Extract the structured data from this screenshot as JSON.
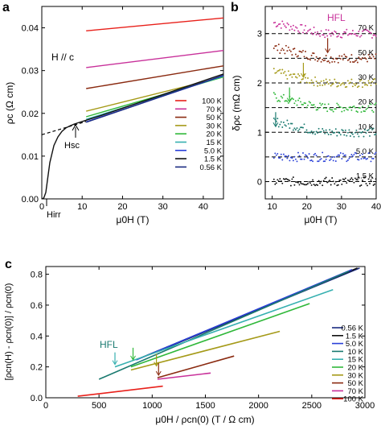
{
  "chart_data": [
    {
      "panel": "a",
      "type": "line",
      "xlabel": "μ0H (T)",
      "ylabel": "ρc (Ω cm)",
      "xlim": [
        0,
        45
      ],
      "ylim": [
        0,
        0.045
      ],
      "xticks": [
        0,
        10,
        20,
        30,
        40
      ],
      "yticks": [
        0.0,
        0.01,
        0.02,
        0.03,
        0.04
      ],
      "ytick_labels": [
        "0.00",
        "0.01",
        "0.02",
        "0.03",
        "0.04"
      ],
      "annotations": [
        "H // c",
        "Hsc",
        "Hirr"
      ],
      "legend": "right",
      "series": [
        {
          "name": "100 K",
          "color": "#e8201a",
          "x": [
            11,
            45
          ],
          "y": [
            0.0393,
            0.0423
          ]
        },
        {
          "name": "70 K",
          "color": "#c8309a",
          "x": [
            11,
            45
          ],
          "y": [
            0.0307,
            0.0347
          ]
        },
        {
          "name": "50 K",
          "color": "#8a2a10",
          "x": [
            11,
            45
          ],
          "y": [
            0.0258,
            0.0311
          ]
        },
        {
          "name": "30 K",
          "color": "#a59a18",
          "x": [
            11,
            45
          ],
          "y": [
            0.0205,
            0.0285
          ]
        },
        {
          "name": "20 K",
          "color": "#30b83a",
          "x": [
            11,
            45
          ],
          "y": [
            0.0192,
            0.0285
          ]
        },
        {
          "name": "15 K",
          "color": "#36b0b0",
          "x": [
            11,
            45
          ],
          "y": [
            0.0186,
            0.0287
          ]
        },
        {
          "name": "5.0 K",
          "color": "#2a40d8",
          "x": [
            11,
            45
          ],
          "y": [
            0.018,
            0.0288
          ]
        },
        {
          "name": "1.5 K",
          "color": "#111111",
          "x": [
            0,
            0.5,
            1,
            1.5,
            2,
            3,
            4,
            5,
            6,
            7,
            8,
            9,
            10,
            15,
            20,
            25,
            30,
            35,
            40,
            45
          ],
          "y": [
            0.0,
            0.0002,
            0.0015,
            0.005,
            0.0085,
            0.0125,
            0.0145,
            0.0158,
            0.0166,
            0.0171,
            0.0175,
            0.0178,
            0.0181,
            0.0196,
            0.0212,
            0.0228,
            0.0244,
            0.026,
            0.0276,
            0.0292
          ]
        },
        {
          "name": "0.56 K",
          "color": "#1a2a80",
          "x": [
            11,
            45
          ],
          "y": [
            0.0179,
            0.0289
          ]
        }
      ]
    },
    {
      "panel": "b",
      "type": "scatter",
      "xlabel": "μ0H (T)",
      "ylabel": "δρc (mΩ cm)",
      "xlim": [
        8,
        40
      ],
      "ylim": [
        -0.35,
        3.55
      ],
      "xticks": [
        10,
        20,
        30,
        40
      ],
      "yticks": [
        0,
        1,
        2,
        3
      ],
      "annotations": [
        "HFL"
      ],
      "series": [
        {
          "name": "70 K",
          "color": "#c8309a",
          "offset": 3.0,
          "fl_field": null
        },
        {
          "name": "50 K",
          "color": "#8a2a10",
          "offset": 2.5,
          "fl_field": 26
        },
        {
          "name": "30 K",
          "color": "#a59a18",
          "offset": 2.0,
          "fl_field": 19
        },
        {
          "name": "20 K",
          "color": "#30b83a",
          "offset": 1.5,
          "fl_field": 15
        },
        {
          "name": "10 K",
          "color": "#1a7a70",
          "offset": 1.0,
          "fl_field": 11
        },
        {
          "name": "5.0 K",
          "color": "#2a40d8",
          "offset": 0.5,
          "fl_field": null
        },
        {
          "name": "1.5 K",
          "color": "#111111",
          "offset": 0.0,
          "fl_field": null
        }
      ]
    },
    {
      "panel": "c",
      "type": "line",
      "xlabel": "μ0H / ρcn(0)  (T / Ω cm)",
      "ylabel": "[ρcn(H) - ρcn(0)] / ρcn(0)",
      "xlim": [
        0,
        3000
      ],
      "ylim": [
        0,
        0.85
      ],
      "xticks": [
        0,
        500,
        1000,
        1500,
        2000,
        2500,
        3000
      ],
      "yticks": [
        0.0,
        0.2,
        0.4,
        0.6,
        0.8
      ],
      "annotations": [
        "HFL"
      ],
      "legend": "right",
      "series": [
        {
          "name": "0.56 K",
          "color": "#1a2a80",
          "x": [
            1050,
            2950
          ],
          "y": [
            0.3,
            0.84
          ]
        },
        {
          "name": "1.5 K",
          "color": "#111111",
          "x": [
            900,
            2930
          ],
          "y": [
            0.26,
            0.84
          ]
        },
        {
          "name": "5.0 K",
          "color": "#2a40d8",
          "x": [
            850,
            2880
          ],
          "y": [
            0.245,
            0.83
          ]
        },
        {
          "name": "10 K",
          "color": "#1a7a70",
          "x": [
            500,
            2850
          ],
          "y": [
            0.12,
            0.82
          ]
        },
        {
          "name": "15 K",
          "color": "#36b0b0",
          "x": [
            650,
            2700
          ],
          "y": [
            0.2,
            0.7
          ]
        },
        {
          "name": "20 K",
          "color": "#30b83a",
          "x": [
            800,
            2480
          ],
          "y": [
            0.2,
            0.61
          ]
        },
        {
          "name": "30 K",
          "color": "#a59a18",
          "x": [
            800,
            2200
          ],
          "y": [
            0.18,
            0.43
          ]
        },
        {
          "name": "50 K",
          "color": "#8a2a10",
          "x": [
            1050,
            1770
          ],
          "y": [
            0.13,
            0.27
          ]
        },
        {
          "name": "70 K",
          "color": "#c8309a",
          "x": [
            1050,
            1550
          ],
          "y": [
            0.12,
            0.16
          ]
        },
        {
          "name": "100 K",
          "color": "#e8201a",
          "x": [
            300,
            1100
          ],
          "y": [
            0.01,
            0.075
          ]
        }
      ]
    }
  ],
  "labels": {
    "panel_a": "a",
    "panel_b": "b",
    "panel_c": "c"
  }
}
